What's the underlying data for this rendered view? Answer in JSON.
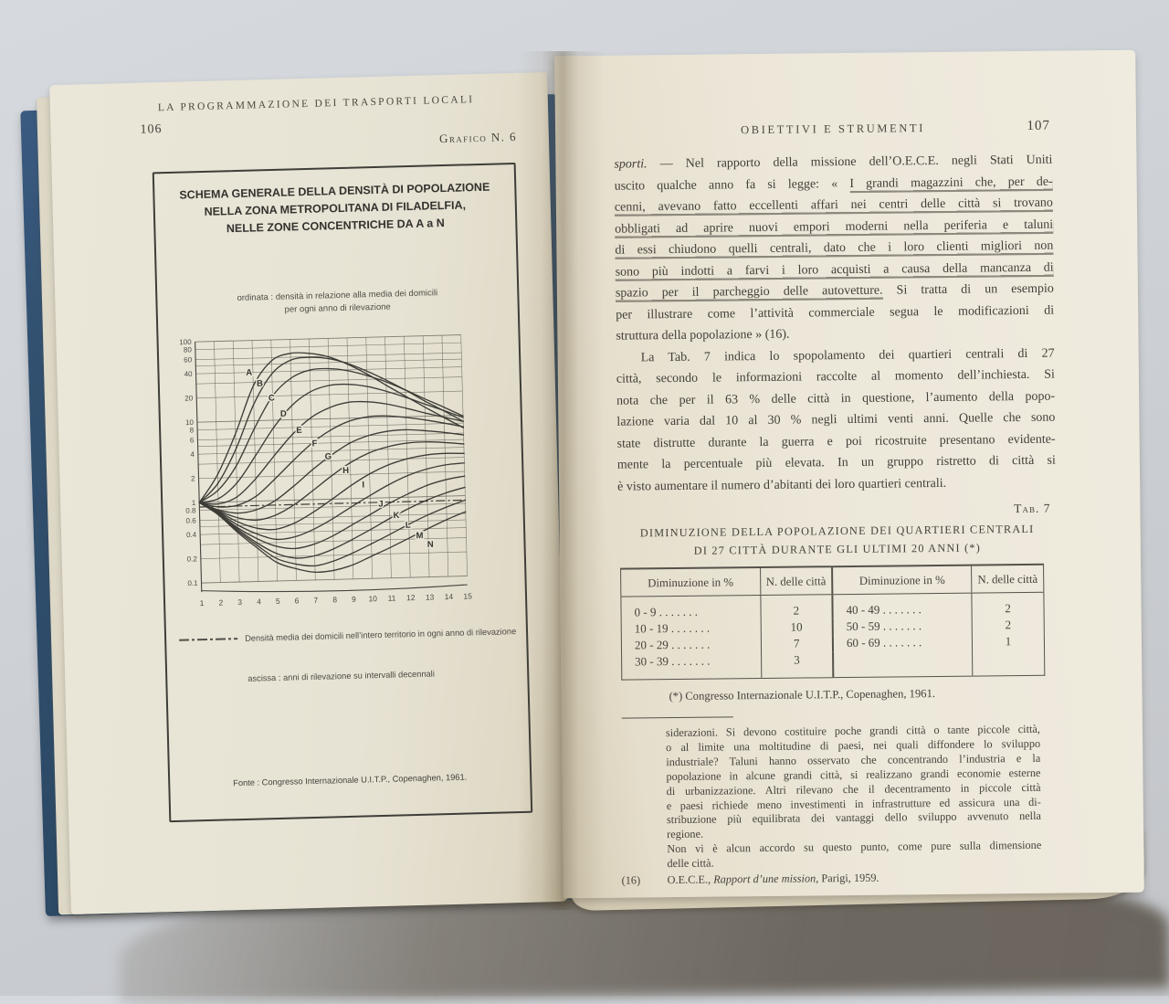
{
  "photo": {
    "background_color": "#cfd3d8",
    "cover_color": "#31506f",
    "left_page_color": "#e7e3d4",
    "right_page_color": "#ece7d9",
    "ink_color": "#433f38",
    "pencil_underline_color": "#767066"
  },
  "left_page": {
    "page_number": "106",
    "running_header": "LA PROGRAMMAZIONE DEI TRASPORTI LOCALI",
    "figure_label": "Grafico N. 6",
    "chart_box": {
      "title_lines": [
        "SCHEMA GENERALE DELLA DENSITÀ DI POPOLAZIONE",
        "NELLA ZONA METROPOLITANA DI FILADELFIA,",
        "NELLE ZONE CONCENTRICHE DA A a N"
      ],
      "ordinate_note_lines": [
        "ordinata : densità in relazione alla media dei domicili",
        "per ogni anno di rilevazione"
      ],
      "legend": "Densità media dei domicili nell’intero territorio in ogni anno di rilevazione",
      "ascissa_note": "ascissa : anni di rilevazione su intervalli decennali",
      "source": "Fonte : Congresso Internazionale U.I.T.P., Copenaghen, 1961."
    }
  },
  "chart_data": {
    "type": "line",
    "title": "Schema generale della densità di popolazione nella zona metropolitana di Filadelfia, nelle zone concentriche da A a N",
    "xlabel": "anni di rilevazione su intervalli decennali",
    "ylabel": "densità in relazione alla media dei domicili per ogni anno di rilevazione",
    "x": [
      1,
      2,
      3,
      4,
      5,
      6,
      7,
      8,
      9,
      10,
      11,
      12,
      13,
      14,
      15
    ],
    "x_tick_labels": [
      "1",
      "2",
      "3",
      "4",
      "5",
      "6",
      "7",
      "8",
      "9",
      "10",
      "11",
      "12",
      "13",
      "14",
      "15"
    ],
    "y_scale": "log",
    "ylim": [
      0.1,
      100
    ],
    "y_tick_labels": [
      "100",
      "80",
      "60",
      "40",
      "20",
      "10",
      "8",
      "6",
      "4",
      "2",
      "1",
      "0.8",
      "0.6",
      "0.4",
      "0.2",
      "0.1"
    ],
    "grid_y_values": [
      0.1,
      0.2,
      0.3,
      0.4,
      0.5,
      0.6,
      0.8,
      1,
      2,
      3,
      4,
      5,
      6,
      8,
      10,
      20,
      30,
      40,
      50,
      60,
      80,
      100
    ],
    "grid": true,
    "legend_position": "below",
    "reference_line": {
      "value": 0.88,
      "style": "dash-dot",
      "label": "Densità media dei domicili nell’intero territorio in ogni anno di rilevazione"
    },
    "series": [
      {
        "name": "A",
        "label_pos": [
          3.8,
          40
        ],
        "values": [
          1,
          2.2,
          7,
          27,
          55,
          67,
          66,
          59,
          47,
          35,
          25,
          18,
          13,
          9.5,
          7
        ]
      },
      {
        "name": "B",
        "label_pos": [
          4.35,
          29
        ],
        "values": [
          1,
          1.7,
          4.5,
          16,
          38,
          55,
          59,
          56,
          48,
          38,
          29,
          21.5,
          15.5,
          11.5,
          8.4
        ]
      },
      {
        "name": "C",
        "label_pos": [
          4.95,
          19
        ],
        "values": [
          1,
          1.4,
          2.8,
          8,
          20,
          33,
          41,
          42,
          39,
          33.5,
          27.5,
          21.5,
          16.5,
          12.8,
          9.8
        ]
      },
      {
        "name": "D",
        "label_pos": [
          5.55,
          12
        ],
        "values": [
          1,
          1.1,
          1.7,
          3.6,
          8,
          15,
          22,
          26,
          26.5,
          24.5,
          21,
          17.5,
          14.2,
          11.6,
          9.4
        ]
      },
      {
        "name": "E",
        "label_pos": [
          6.35,
          7.4
        ],
        "values": [
          1,
          0.95,
          1.15,
          1.9,
          3.6,
          6.6,
          10.5,
          13.8,
          15.8,
          15.8,
          14.6,
          12.8,
          11,
          9.6,
          8.4
        ]
      },
      {
        "name": "F",
        "label_pos": [
          7.15,
          5.0
        ],
        "values": [
          1,
          0.87,
          0.9,
          1.15,
          1.85,
          3.1,
          5,
          7.2,
          9.2,
          10.3,
          10.4,
          9.8,
          9,
          8.1,
          7.2
        ]
      },
      {
        "name": "G",
        "label_pos": [
          7.85,
          3.4
        ],
        "values": [
          1,
          0.8,
          0.72,
          0.78,
          1,
          1.5,
          2.35,
          3.5,
          4.9,
          6,
          6.7,
          6.9,
          6.6,
          6.2,
          5.7
        ]
      },
      {
        "name": "H",
        "label_pos": [
          8.75,
          2.25
        ],
        "values": [
          1,
          0.78,
          0.63,
          0.58,
          0.66,
          0.88,
          1.3,
          1.95,
          2.8,
          3.65,
          4.3,
          4.7,
          4.8,
          4.65,
          4.4
        ]
      },
      {
        "name": "I",
        "label_pos": [
          9.65,
          1.48
        ],
        "values": [
          1,
          0.76,
          0.56,
          0.46,
          0.44,
          0.52,
          0.7,
          1,
          1.45,
          2,
          2.55,
          3,
          3.3,
          3.4,
          3.35
        ]
      },
      {
        "name": "J",
        "label_pos": [
          10.55,
          0.84
        ],
        "values": [
          1,
          0.74,
          0.51,
          0.39,
          0.33,
          0.35,
          0.43,
          0.57,
          0.79,
          1.08,
          1.45,
          1.85,
          2.2,
          2.45,
          2.55
        ]
      },
      {
        "name": "K",
        "label_pos": [
          11.35,
          0.6
        ],
        "values": [
          1,
          0.72,
          0.47,
          0.34,
          0.27,
          0.25,
          0.28,
          0.35,
          0.47,
          0.63,
          0.85,
          1.1,
          1.38,
          1.6,
          1.75
        ]
      },
      {
        "name": "L",
        "label_pos": [
          11.95,
          0.45
        ],
        "values": [
          1,
          0.71,
          0.45,
          0.3,
          0.22,
          0.19,
          0.2,
          0.24,
          0.31,
          0.41,
          0.55,
          0.72,
          0.91,
          1.1,
          1.27
        ]
      },
      {
        "name": "M",
        "label_pos": [
          12.55,
          0.33
        ],
        "values": [
          1,
          0.7,
          0.43,
          0.28,
          0.19,
          0.16,
          0.15,
          0.17,
          0.21,
          0.27,
          0.35,
          0.46,
          0.59,
          0.73,
          0.88
        ]
      },
      {
        "name": "N",
        "label_pos": [
          13.1,
          0.255
        ],
        "values": [
          1,
          0.69,
          0.41,
          0.26,
          0.17,
          0.14,
          0.125,
          0.13,
          0.15,
          0.19,
          0.24,
          0.31,
          0.4,
          0.51,
          0.63
        ]
      }
    ]
  },
  "right_page": {
    "page_number": "107",
    "running_header": "OBIETTIVI E STRUMENTI",
    "para1_lines": [
      {
        "seg": [
          {
            "t": "sporti.",
            "it": true
          },
          {
            "t": " — Nel rapporto della missione dell’O.E.C.E. negli Stati Uniti"
          }
        ]
      },
      {
        "seg": [
          {
            "t": "uscito qualche anno fa si legge: « "
          },
          {
            "t": "I grandi magazzini che, per de-",
            "u": true
          }
        ]
      },
      {
        "seg": [
          {
            "t": "cenni, avevano fatto eccellenti affari nei centri delle città si trovano",
            "u": true
          }
        ]
      },
      {
        "seg": [
          {
            "t": "obbligati ad aprire nuovi empori moderni nella periferia e taluni",
            "u": true
          }
        ]
      },
      {
        "seg": [
          {
            "t": "di essi chiudono quelli centrali, dato che i loro clienti migliori non",
            "u": true
          }
        ]
      },
      {
        "seg": [
          {
            "t": "sono più indotti a farvi i loro acquisti a causa della mancanza di",
            "u": true
          }
        ]
      },
      {
        "seg": [
          {
            "t": "spazio per il parcheggio delle autovetture.",
            "u": true
          },
          {
            "t": " Si tratta di un esempio"
          }
        ]
      },
      {
        "seg": [
          {
            "t": "per illustrare come l’attività commerciale segua le modificazioni di"
          }
        ]
      },
      {
        "seg": [
          {
            "t": "struttura della popolazione » (16)."
          }
        ],
        "last": true
      }
    ],
    "para2_lines": [
      {
        "seg": [
          {
            "t": "La Tab. 7 indica lo spopolamento dei quartieri centrali di 27"
          }
        ],
        "ind": true
      },
      {
        "seg": [
          {
            "t": "città, secondo le informazioni raccolte al momento dell’inchiesta. Si"
          }
        ]
      },
      {
        "seg": [
          {
            "t": "nota che per il 63 % delle città in questione, l’aumento della popo-"
          }
        ]
      },
      {
        "seg": [
          {
            "t": "lazione varia dal 10 al 30 % negli ultimi venti anni. Quelle che sono"
          }
        ]
      },
      {
        "seg": [
          {
            "t": "state distrutte durante la guerra e poi ricostruite presentano evidente-"
          }
        ]
      },
      {
        "seg": [
          {
            "t": "mente la percentuale più elevata. In un gruppo ristretto di città si"
          }
        ]
      },
      {
        "seg": [
          {
            "t": "è visto aumentare il numero d’abitanti dei loro quartieri centrali."
          }
        ],
        "last": true
      }
    ],
    "table_label": "Tab. 7",
    "table": {
      "title_lines": [
        "DIMINUZIONE DELLA POPOLAZIONE DEI QUARTIERI CENTRALI",
        "DI 27 CITTÀ DURANTE GLI ULTIMI 20 ANNI (*)"
      ],
      "col_headers": [
        "Diminuzione in %",
        "N. delle città",
        "Diminuzione in %",
        "N. delle città"
      ],
      "rows": [
        [
          "0 - 9 . . . . . . .",
          "2",
          "40 - 49 . . . . . . .",
          "2"
        ],
        [
          "10 - 19 . . . . . . .",
          "10",
          "50 - 59 . . . . . . .",
          "2"
        ],
        [
          "20 - 29 . . . . . . .",
          "7",
          "60 - 69 . . . . . . .",
          "1"
        ],
        [
          "30 - 39 . . . . . . .",
          "3",
          "",
          ""
        ]
      ],
      "footnote": "(*) Congresso Internazionale U.I.T.P., Copenaghen, 1961."
    },
    "footnote_block_lines": [
      {
        "seg": [
          {
            "t": "siderazioni. Si devono costituire poche grandi città o tante piccole città,"
          }
        ]
      },
      {
        "seg": [
          {
            "t": "o al limite una moltitudine di paesi, nei quali diffondere lo sviluppo"
          }
        ]
      },
      {
        "seg": [
          {
            "t": "industriale? Taluni hanno osservato che concentrando l’industria e la"
          }
        ]
      },
      {
        "seg": [
          {
            "t": "popolazione in alcune grandi città, si realizzano grandi economie esterne"
          }
        ]
      },
      {
        "seg": [
          {
            "t": "di urbanizzazione. Altri rilevano che il decentramento in piccole città"
          }
        ]
      },
      {
        "seg": [
          {
            "t": "e paesi richiede meno investimenti in infrastrutture ed assicura una di-"
          }
        ]
      },
      {
        "seg": [
          {
            "t": "stribuzione più equilibrata dei vantaggi dello sviluppo avvenuto nella"
          }
        ]
      },
      {
        "seg": [
          {
            "t": "regione."
          }
        ],
        "last": true
      },
      {
        "seg": [
          {
            "t": "Non vi è alcun accordo su questo punto, come pure sulla dimensione"
          }
        ]
      },
      {
        "seg": [
          {
            "t": "delle città."
          }
        ],
        "last": true
      }
    ],
    "note16": {
      "num": "(16)",
      "pre": "O.E.C.E., ",
      "italic": "Rapport d’une mission",
      "post": ", Parigi, 1959."
    }
  }
}
